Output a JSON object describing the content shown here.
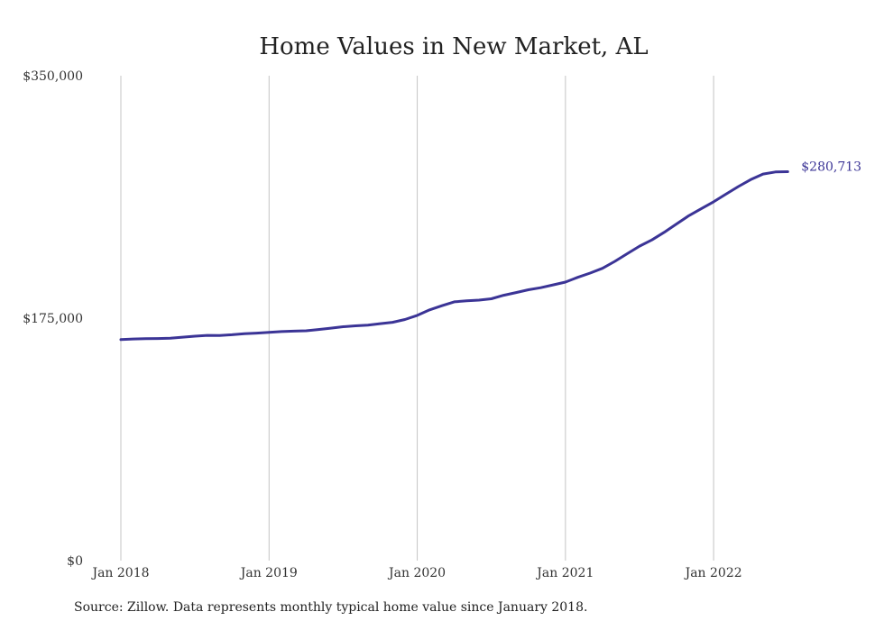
{
  "chart_data": {
    "type": "line",
    "title": "Home Values in New Market, AL",
    "xlabel": "",
    "ylabel": "",
    "ylim": [
      0,
      350000
    ],
    "y_ticks": [
      0,
      175000,
      350000
    ],
    "y_tick_labels": [
      "$0",
      "$175,000",
      "$350,000"
    ],
    "x_ticks": [
      "2018-01",
      "2019-01",
      "2020-01",
      "2021-01",
      "2022-01"
    ],
    "x_tick_labels": [
      "Jan 2018",
      "Jan 2019",
      "Jan 2020",
      "Jan 2021",
      "Jan 2022"
    ],
    "grid": "vertical",
    "line_color": "#3b3496",
    "last_value_label": "$280,713",
    "series": [
      {
        "x": [
          "2018-01",
          "2018-02",
          "2018-03",
          "2018-04",
          "2018-05",
          "2018-06",
          "2018-07",
          "2018-08",
          "2018-09",
          "2018-10",
          "2018-11",
          "2018-12",
          "2019-01",
          "2019-02",
          "2019-03",
          "2019-04",
          "2019-05",
          "2019-06",
          "2019-07",
          "2019-08",
          "2019-09",
          "2019-10",
          "2019-11",
          "2019-12",
          "2020-01",
          "2020-02",
          "2020-03",
          "2020-04",
          "2020-05",
          "2020-06",
          "2020-07",
          "2020-08",
          "2020-09",
          "2020-10",
          "2020-11",
          "2020-12",
          "2021-01",
          "2021-02",
          "2021-03",
          "2021-04",
          "2021-05",
          "2021-06",
          "2021-07",
          "2021-08",
          "2021-09",
          "2021-10",
          "2021-11",
          "2021-12",
          "2022-01",
          "2022-02",
          "2022-03",
          "2022-04",
          "2022-05",
          "2022-06",
          "2022-07"
        ],
        "values": [
          159500,
          160000,
          160200,
          160300,
          160500,
          161300,
          162000,
          162600,
          162500,
          163000,
          163800,
          164200,
          164800,
          165300,
          165600,
          165900,
          166800,
          167800,
          168800,
          169500,
          170000,
          171000,
          172000,
          174000,
          177000,
          181000,
          184000,
          186800,
          187500,
          188000,
          189000,
          191500,
          193500,
          195500,
          197000,
          199000,
          201000,
          204500,
          207500,
          211000,
          216000,
          221500,
          227000,
          231500,
          237000,
          243000,
          249000,
          254000,
          259000,
          264500,
          270000,
          275000,
          279000,
          280500,
          280713
        ]
      }
    ]
  },
  "source_note": "Source: Zillow. Data represents monthly typical home value since January 2018."
}
